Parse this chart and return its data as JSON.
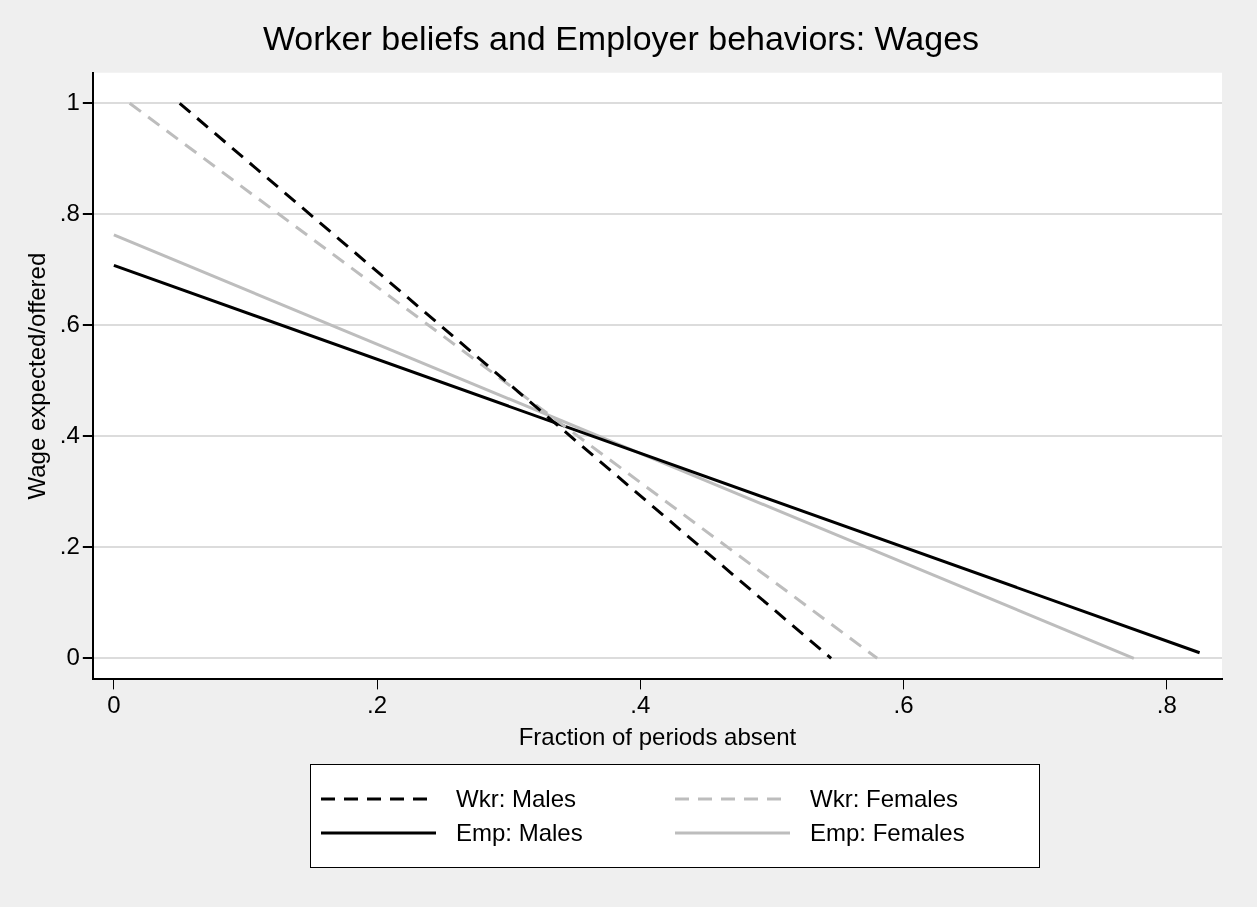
{
  "chart_data": {
    "type": "line",
    "title": "Worker beliefs and Employer behaviors: Wages",
    "xlabel": "Fraction of periods absent",
    "ylabel": "Wage expected/offered",
    "xlim": [
      -0.016,
      0.842
    ],
    "xticks": [
      {
        "value": 0,
        "label": "0"
      },
      {
        "value": 0.2,
        "label": ".2"
      },
      {
        "value": 0.4,
        "label": ".4"
      },
      {
        "value": 0.6,
        "label": ".6"
      },
      {
        "value": 0.8,
        "label": ".8"
      }
    ],
    "ylim": [
      -0.038,
      1.055
    ],
    "yticks": [
      {
        "value": 0,
        "label": "0"
      },
      {
        "value": 0.2,
        "label": ".2"
      },
      {
        "value": 0.4,
        "label": ".4"
      },
      {
        "value": 0.6,
        "label": ".6"
      },
      {
        "value": 0.8,
        "label": ".8"
      },
      {
        "value": 1,
        "label": "1"
      }
    ],
    "grid": "y",
    "legend": "bottom",
    "marker": "none",
    "series": [
      {
        "name": "Wkr: Males",
        "color": "#000000",
        "line_style": "dashed",
        "x": [
          0.05,
          0.545
        ],
        "values": [
          1.0,
          0
        ]
      },
      {
        "name": "Wkr: Females",
        "color": "#bdbdbd",
        "line_style": "dashed",
        "x": [
          0.012,
          0.58
        ],
        "values": [
          1.0,
          0
        ]
      },
      {
        "name": "Emp: Males",
        "color": "#000000",
        "line_style": "solid",
        "x": [
          0,
          0.825
        ],
        "values": [
          0.708,
          0.01
        ]
      },
      {
        "name": "Emp: Females",
        "color": "#bdbdbd",
        "line_style": "solid",
        "x": [
          0,
          0.775
        ],
        "values": [
          0.763,
          0
        ]
      }
    ]
  }
}
